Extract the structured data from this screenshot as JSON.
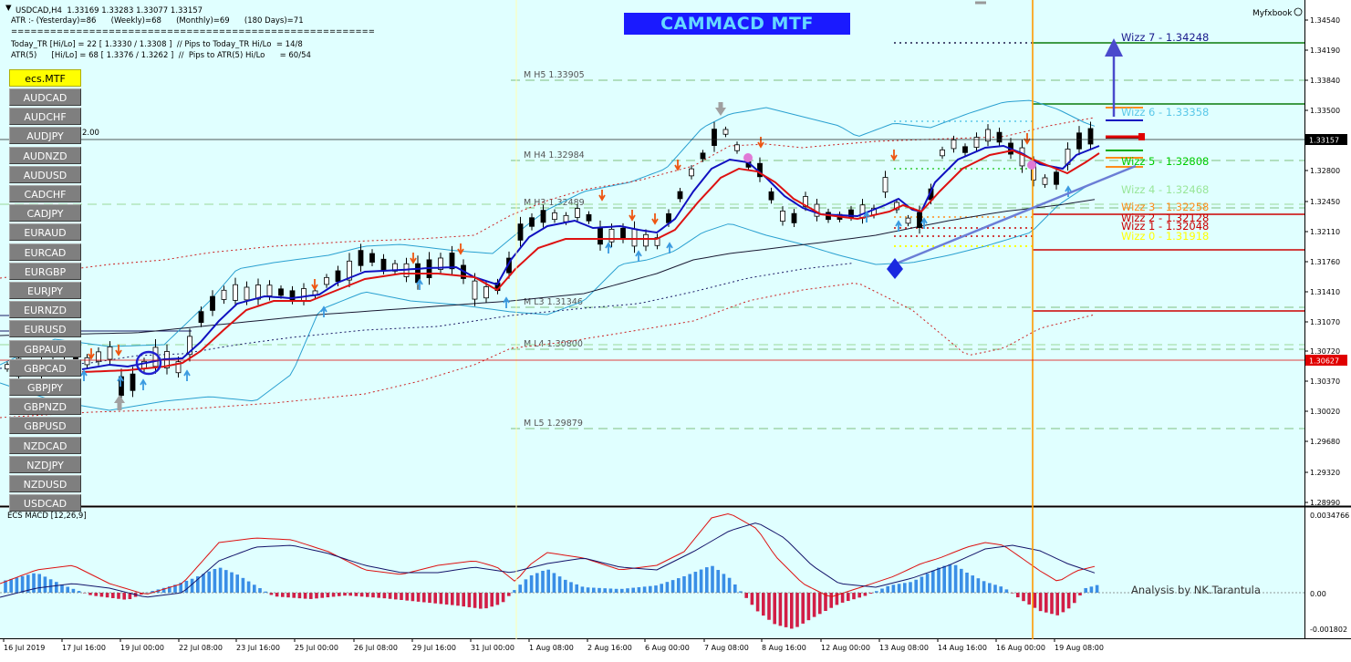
{
  "header": {
    "symbol_line": "USDCAD,H4  1.33169 1.33283 1.33077 1.33157",
    "atr_line": "ATR :- (Yesterday)=86      (Weekly)=68      (Monthly)=69      (180 Days)=71",
    "separator": "========================================================",
    "today_tr_line": "Today_TR [Hi/Lo] = 22 [ 1.3330 / 1.3308 ]  // Pips to Today_TR Hi/Lo  = 14/8",
    "atr5_line": "ATR(5)      [Hi/Lo] = 68 [ 1.3376 / 1.3262 ]  //  Pips to ATR(5) Hi/Lo      = 60/54",
    "broker": "Myfxbook",
    "indicator_title": "CAMMACD MTF",
    "partial_value": "2.00"
  },
  "symbols": {
    "active": "ecs.MTF",
    "list": [
      "AUDCAD",
      "AUDCHF",
      "AUDJPY",
      "AUDNZD",
      "AUDUSD",
      "CADCHF",
      "CADJPY",
      "EURAUD",
      "EURCAD",
      "EURGBP",
      "EURJPY",
      "EURNZD",
      "EURUSD",
      "GBPAUD",
      "GBPCAD",
      "GBPJPY",
      "GBPNZD",
      "GBPUSD",
      "NZDCAD",
      "NZDJPY",
      "NZDUSD",
      "USDCAD"
    ]
  },
  "price_axis": {
    "ticks": [
      "1.34540",
      "1.34190",
      "1.33840",
      "1.33500",
      "1.33157",
      "1.32800",
      "1.32450",
      "1.32110",
      "1.31760",
      "1.31410",
      "1.31070",
      "1.30720",
      "1.30627",
      "1.30370",
      "1.30020",
      "1.29680",
      "1.29320",
      "1.28990"
    ],
    "current_price": "1.33157",
    "marker_price": "1.30627",
    "current_color": "#000000",
    "marker_color": "#e00000"
  },
  "pivots": [
    {
      "label": "M  H5 1.33905",
      "color": "#7fbf7f"
    },
    {
      "label": "M  H4 1.32984",
      "color": "#7fbf7f"
    },
    {
      "label": "M  L3 1.31346",
      "color": "#7fbf7f"
    },
    {
      "label": "M  L4 1.30800",
      "color": "#7fbf7f"
    },
    {
      "label": "M  L5 1.29879",
      "color": "#7fbf7f"
    },
    {
      "label": "M  H3 1.32489",
      "color": "#7fbf7f"
    }
  ],
  "wizz": [
    {
      "label": "Wizz 7 - 1.34248",
      "color": "#1a1a8c"
    },
    {
      "label": "Wizz 6 - 1.33358",
      "color": "#5bc8e8"
    },
    {
      "label": "Wizz 5 - 1.32808",
      "color": "#00cc00"
    },
    {
      "label": "Wizz 4 - 1.32468",
      "color": "#99e699"
    },
    {
      "label": "Wizz 3 - 1.32258",
      "color": "#ff8c1a"
    },
    {
      "label": "Wizz 2 - 1.32128",
      "color": "#cc0000"
    },
    {
      "label": "Wizz 1 - 1.32048",
      "color": "#cc0000"
    },
    {
      "label": "Wizz 0 - 1.31918",
      "color": "#ffff00"
    }
  ],
  "macd": {
    "label": "ECS MACD [12,26,9]",
    "ticks": [
      "0.0034766",
      "0.00",
      "-0.001802"
    ],
    "credit": "Analysis by NK.Tarantula"
  },
  "time_axis": [
    "16 Jul 2019",
    "17 Jul 16:00",
    "19 Jul 00:00",
    "22 Jul 08:00",
    "23 Jul 16:00",
    "25 Jul 00:00",
    "26 Jul 08:00",
    "29 Jul 16:00",
    "31 Jul 00:00",
    "1 Aug 08:00",
    "2 Aug 16:00",
    "6 Aug 00:00",
    "7 Aug 08:00",
    "8 Aug 16:00",
    "12 Aug 00:00",
    "13 Aug 08:00",
    "14 Aug 16:00",
    "16 Aug 00:00",
    "19 Aug 08:00"
  ],
  "colors": {
    "background": "#e0ffff",
    "fast_ma": "#1010c0",
    "slow_ma": "#dd1111",
    "bands": "#2aa0d0",
    "positive_hist": "#3a8ee6",
    "negative_hist": "#d21e46",
    "vertical_marker": "#ff9900"
  }
}
